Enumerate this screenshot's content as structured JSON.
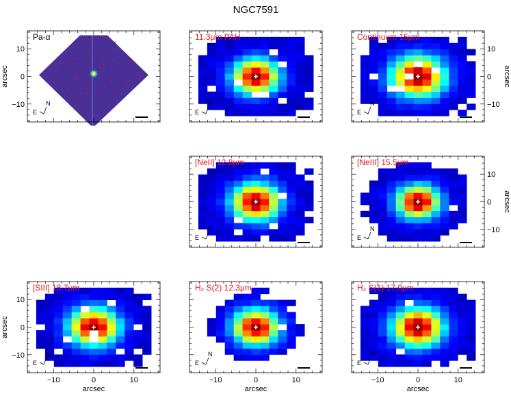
{
  "figure": {
    "title": "NGC7591",
    "axis_label": "arcsec",
    "colors": {
      "label_red": "#e8141b",
      "frame": "#000000",
      "background": "#ffffff"
    },
    "compass": {
      "north": "N",
      "east": "E"
    },
    "extent": [
      -16.5,
      16.5
    ],
    "ticks": [
      -10,
      0,
      10
    ],
    "panels": [
      {
        "id": "pa-alpha",
        "row": 0,
        "col": 0,
        "label": "Pa-α",
        "kind": "image",
        "ticks_left": true,
        "ticks_right": false,
        "ticks_bottom": false,
        "left_label": true,
        "right_label": false,
        "bottom_label": false,
        "label_color": "#000000"
      },
      {
        "id": "pah-11-3",
        "row": 0,
        "col": 1,
        "label": "11.3μm PAH",
        "kind": "pixel",
        "ticks_left": false,
        "ticks_right": false,
        "ticks_bottom": false,
        "left_label": false,
        "right_label": false,
        "bottom_label": false,
        "label_color": "#e8141b"
      },
      {
        "id": "cont-15",
        "row": 0,
        "col": 2,
        "label": "Continuum 15μm",
        "kind": "pixel",
        "ticks_left": false,
        "ticks_right": true,
        "ticks_bottom": false,
        "left_label": false,
        "right_label": true,
        "bottom_label": false,
        "label_color": "#e8141b"
      },
      {
        "id": "neii-12-8",
        "row": 1,
        "col": 1,
        "label": "[NeII] 12.8μm",
        "kind": "pixel",
        "ticks_left": false,
        "ticks_right": false,
        "ticks_bottom": false,
        "left_label": false,
        "right_label": false,
        "bottom_label": false,
        "label_color": "#e8141b"
      },
      {
        "id": "neiii-15-5",
        "row": 1,
        "col": 2,
        "label": "[NeIII] 15.5μm",
        "kind": "pixel",
        "ticks_left": false,
        "ticks_right": true,
        "ticks_bottom": false,
        "left_label": false,
        "right_label": true,
        "bottom_label": false,
        "label_color": "#e8141b"
      },
      {
        "id": "siii-18-7",
        "row": 2,
        "col": 0,
        "label": "[SIII] 18.7μm",
        "kind": "pixel",
        "ticks_left": true,
        "ticks_right": false,
        "ticks_bottom": true,
        "left_label": true,
        "right_label": false,
        "bottom_label": true,
        "label_color": "#e8141b"
      },
      {
        "id": "h2-s2",
        "row": 2,
        "col": 1,
        "label": "H₂  S(2) 12.3μm",
        "kind": "pixel",
        "ticks_left": false,
        "ticks_right": false,
        "ticks_bottom": true,
        "left_label": false,
        "right_label": false,
        "bottom_label": true,
        "label_color": "#e8141b"
      },
      {
        "id": "h2-s1",
        "row": 2,
        "col": 2,
        "label": "H₂  S(1) 17.0μm",
        "kind": "pixel",
        "ticks_left": false,
        "ticks_right": false,
        "ticks_bottom": true,
        "left_label": false,
        "right_label": false,
        "bottom_label": true,
        "label_color": "#e8141b"
      }
    ]
  }
}
